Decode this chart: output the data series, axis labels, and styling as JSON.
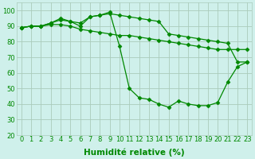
{
  "title": "",
  "xlabel": "Humidité relative (%)",
  "ylabel": "",
  "background_color": "#cff0eb",
  "grid_color": "#aaccbb",
  "line_color": "#008800",
  "x": [
    0,
    1,
    2,
    3,
    4,
    5,
    6,
    7,
    8,
    9,
    10,
    11,
    12,
    13,
    14,
    15,
    16,
    17,
    18,
    19,
    20,
    21,
    22,
    23
  ],
  "series1": [
    89,
    90,
    90,
    91,
    91,
    90,
    88,
    87,
    86,
    85,
    84,
    84,
    83,
    82,
    81,
    80,
    79,
    78,
    77,
    76,
    75,
    75,
    75,
    75
  ],
  "series2": [
    89,
    90,
    90,
    92,
    95,
    93,
    92,
    96,
    97,
    99,
    77,
    50,
    44,
    43,
    40,
    38,
    42,
    40,
    39,
    39,
    41,
    54,
    64,
    67
  ],
  "series3": [
    89,
    90,
    90,
    92,
    94,
    93,
    90,
    96,
    97,
    98,
    97,
    96,
    95,
    94,
    93,
    85,
    84,
    83,
    82,
    81,
    80,
    79,
    67,
    67
  ],
  "ylim": [
    20,
    105
  ],
  "xlim": [
    -0.5,
    23.5
  ],
  "yticks": [
    20,
    30,
    40,
    50,
    60,
    70,
    80,
    90,
    100
  ],
  "xticks": [
    0,
    1,
    2,
    3,
    4,
    5,
    6,
    7,
    8,
    9,
    10,
    11,
    12,
    13,
    14,
    15,
    16,
    17,
    18,
    19,
    20,
    21,
    22,
    23
  ],
  "tick_fontsize": 6.0,
  "xlabel_fontsize": 7.5,
  "marker": "D",
  "markersize": 2.5,
  "linewidth": 0.9
}
